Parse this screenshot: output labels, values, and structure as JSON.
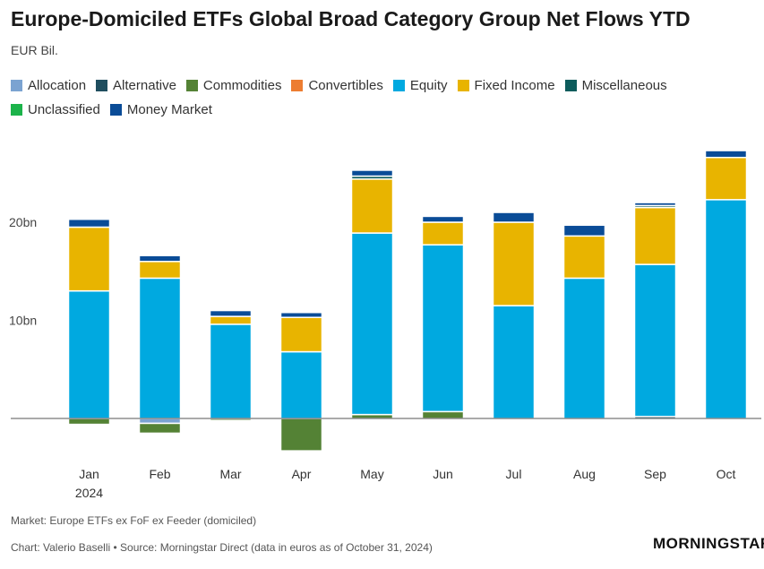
{
  "chart_data": {
    "type": "bar",
    "stacked": true,
    "title": "Europe-Domiciled ETFs Global Broad Category Group Net Flows YTD",
    "subtitle": "EUR Bil.",
    "categories": [
      "Jan",
      "Feb",
      "Mar",
      "Apr",
      "May",
      "Jun",
      "Jul",
      "Aug",
      "Sep",
      "Oct"
    ],
    "category_sublabels": [
      "2024",
      "",
      "",
      "",
      "",
      "",
      "",
      "",
      "",
      ""
    ],
    "ylim": [
      -3.8,
      28
    ],
    "y_ticks": [
      10,
      20
    ],
    "y_tick_labels": [
      "10bn",
      "20bn"
    ],
    "grid": false,
    "legend_position": "top",
    "series": [
      {
        "name": "Allocation",
        "color": "#7ba3d1",
        "values": [
          0,
          -0.5,
          0,
          0,
          0,
          0,
          0,
          0,
          0,
          0
        ]
      },
      {
        "name": "Alternative",
        "color": "#1f4e5f",
        "values": [
          0,
          0,
          0,
          0,
          0,
          0,
          0,
          0,
          0.2,
          0
        ]
      },
      {
        "name": "Commodities",
        "color": "#548235",
        "values": [
          -0.6,
          -1.0,
          -0.2,
          -3.3,
          0.4,
          0.7,
          0,
          0,
          0,
          0
        ]
      },
      {
        "name": "Convertibles",
        "color": "#ed7d31",
        "values": [
          0,
          0,
          0,
          0,
          0,
          0,
          0,
          0,
          0,
          0
        ]
      },
      {
        "name": "Equity",
        "color": "#00a9e0",
        "values": [
          13.0,
          14.3,
          9.6,
          6.8,
          18.5,
          17.0,
          11.5,
          14.3,
          15.5,
          22.3
        ]
      },
      {
        "name": "Fixed Income",
        "color": "#e8b400",
        "values": [
          6.5,
          1.7,
          0.8,
          3.5,
          5.5,
          2.3,
          8.5,
          4.3,
          5.8,
          4.3
        ]
      },
      {
        "name": "Miscellaneous",
        "color": "#0c5c5c",
        "values": [
          0,
          0,
          0,
          0,
          0.3,
          0,
          0,
          0,
          0.2,
          0
        ]
      },
      {
        "name": "Unclassified",
        "color": "#1cb34a",
        "values": [
          0,
          0,
          0,
          0,
          0,
          0,
          0,
          0,
          0,
          0
        ]
      },
      {
        "name": "Money Market",
        "color": "#0a4c97",
        "values": [
          0.8,
          0.6,
          0.6,
          0.5,
          0.6,
          0.6,
          1.0,
          1.1,
          0.3,
          0.7
        ]
      }
    ],
    "net_zero_color": "#888888"
  },
  "footnotes": {
    "market": "Market: Europe ETFs ex FoF ex Feeder (domiciled)",
    "source": "Chart: Valerio Baselli • Source: Morningstar Direct (data in euros as of October 31, 2024)"
  },
  "logo_text": "MORNINGSTAR",
  "logo_mark": "®"
}
